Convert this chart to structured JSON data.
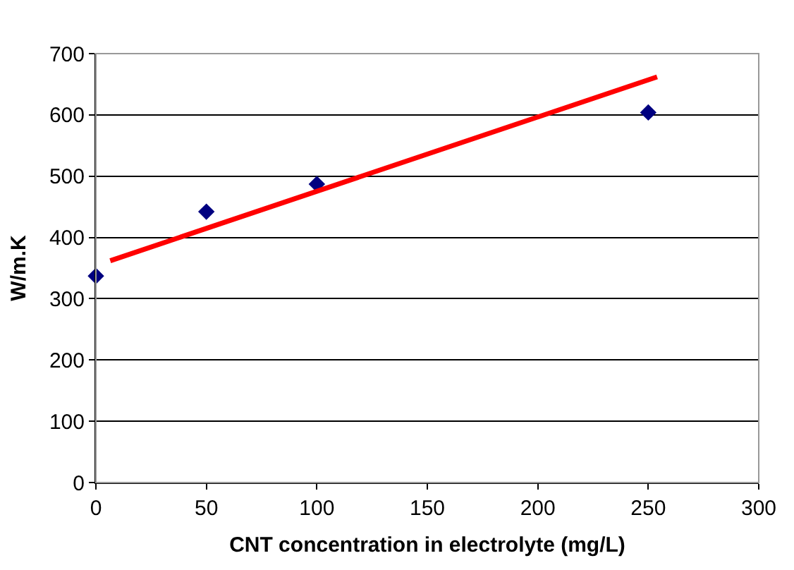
{
  "chart_data": {
    "type": "scatter",
    "xlabel": "CNT concentration in electrolyte (mg/L)",
    "ylabel": "W/m.K",
    "xlim": [
      0,
      300
    ],
    "xticks": [
      0,
      50,
      100,
      150,
      200,
      250,
      300
    ],
    "ylim": [
      0,
      700
    ],
    "yticks": [
      0,
      100,
      200,
      300,
      400,
      500,
      600,
      700
    ],
    "grid": "y",
    "series": [
      {
        "x": [
          0,
          50,
          100,
          250
        ],
        "values": [
          337,
          442,
          487,
          604
        ],
        "color": "#000080",
        "marker": "diamond"
      },
      {
        "type": "line",
        "x": [
          6.5,
          254
        ],
        "values": [
          362,
          662
        ],
        "color": "#ff0000",
        "marker": "none",
        "line_style": "solid"
      }
    ]
  }
}
